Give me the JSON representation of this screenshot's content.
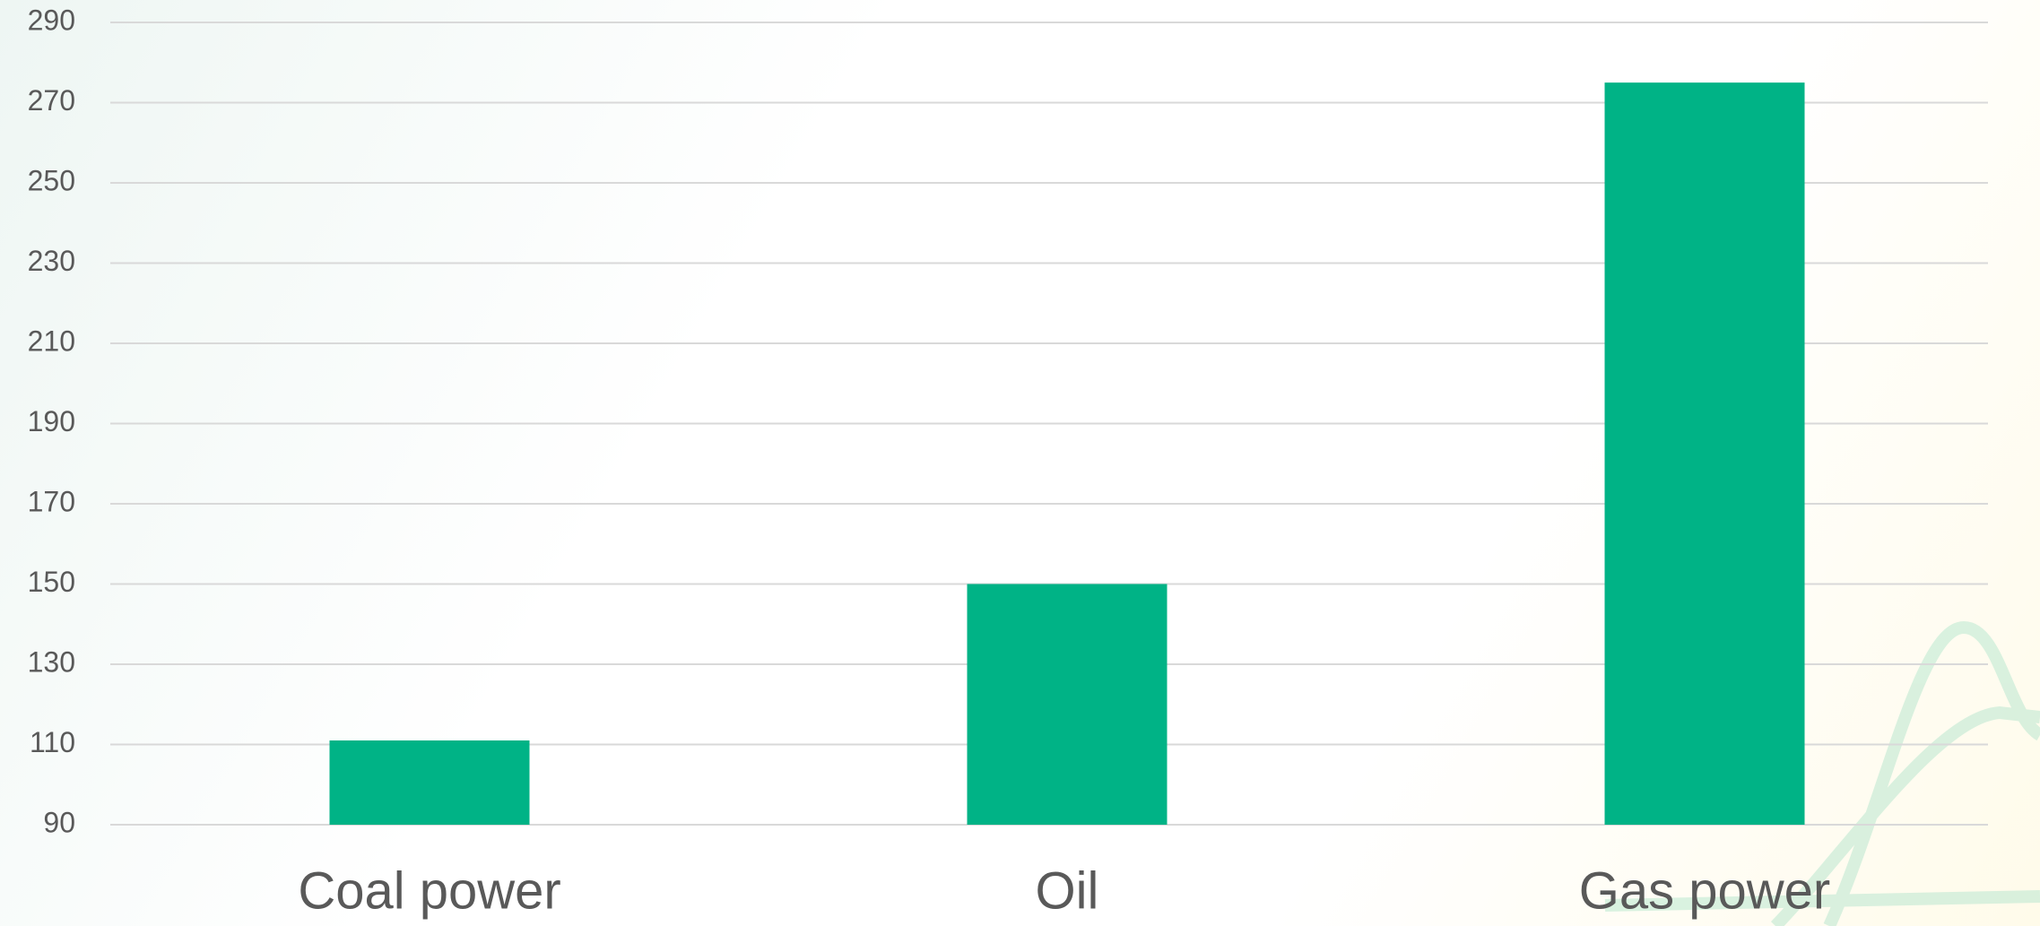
{
  "chart_data": {
    "type": "bar",
    "categories": [
      "Coal power",
      "Oil",
      "Gas power"
    ],
    "values": [
      111,
      150,
      275
    ],
    "color": "#00b386",
    "ylim": [
      90,
      290
    ],
    "yticks": [
      90,
      110,
      130,
      150,
      170,
      190,
      210,
      230,
      250,
      270,
      290
    ],
    "grid": true
  }
}
